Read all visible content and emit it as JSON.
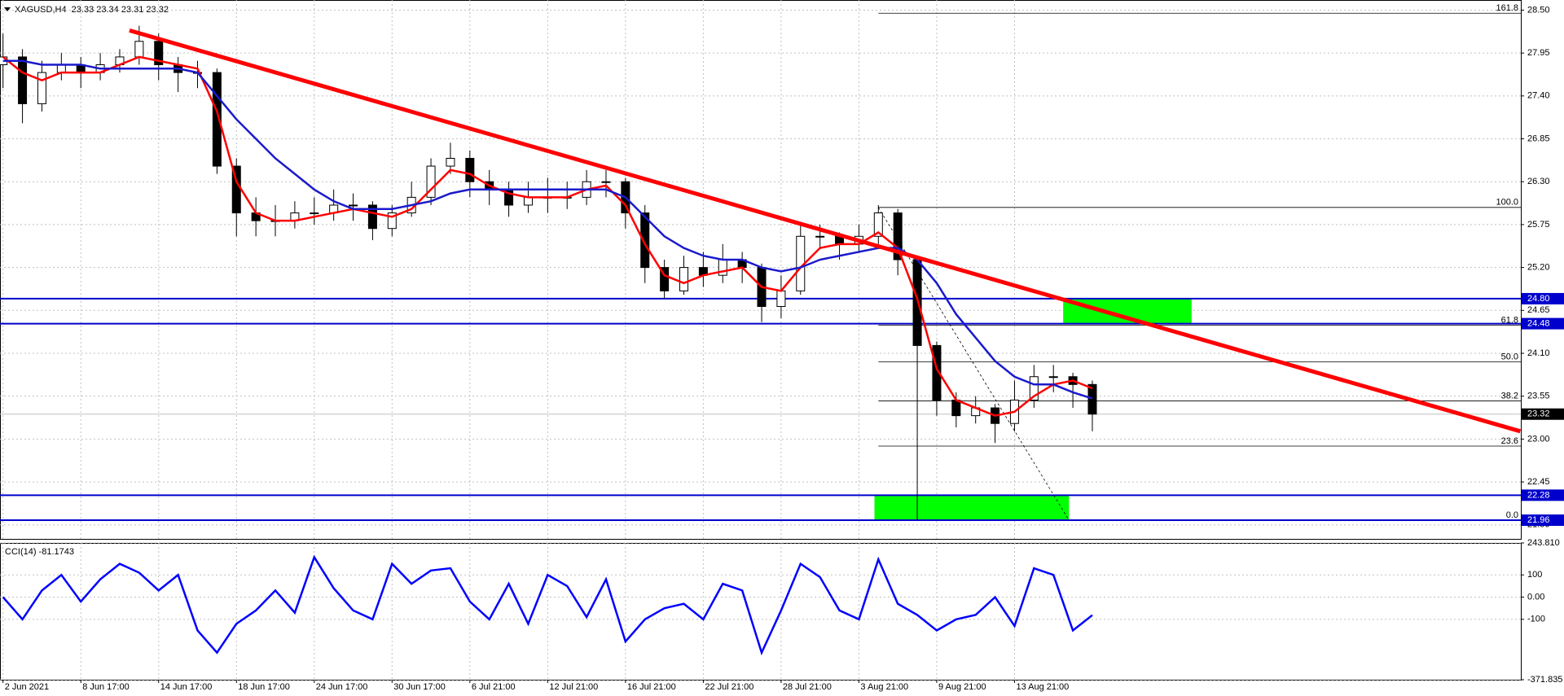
{
  "header": "XAGUSD,H4  23.33 23.34 23.31 23.32",
  "chart_data": [
    {
      "type": "candlestick",
      "categories": [
        "2 Jun 2021",
        null,
        null,
        null,
        "8 Jun 17:00",
        null,
        null,
        null,
        "14 Jun 17:00",
        null,
        null,
        null,
        "18 Jun 17:00",
        null,
        null,
        null,
        "24 Jun 17:00",
        null,
        null,
        null,
        "30 Jun 17:00",
        null,
        null,
        null,
        "6 Jul 21:00",
        null,
        null,
        null,
        "12 Jul 21:00",
        null,
        null,
        null,
        "16 Jul 21:00",
        null,
        null,
        null,
        "22 Jul 21:00",
        null,
        null,
        null,
        "28 Jul 21:00",
        null,
        null,
        null,
        "3 Aug 21:00",
        null,
        null,
        null,
        "9 Aug 21:00",
        null,
        null,
        null,
        "13 Aug 21:00",
        null,
        null,
        null,
        null
      ],
      "open": [
        27.8,
        27.9,
        27.3,
        27.7,
        27.8,
        27.7,
        27.8,
        27.9,
        28.1,
        27.8,
        27.7,
        27.7,
        26.5,
        25.9,
        25.8,
        25.8,
        25.9,
        25.9,
        26.0,
        26.0,
        25.7,
        25.9,
        26.1,
        26.5,
        26.6,
        26.3,
        26.2,
        26.0,
        26.1,
        26.1,
        26.1,
        26.3,
        26.3,
        25.9,
        25.2,
        24.9,
        25.2,
        25.1,
        25.3,
        25.2,
        24.7,
        24.9,
        25.6,
        25.6,
        25.5,
        25.6,
        25.9,
        25.3,
        24.2,
        23.5,
        23.3,
        23.4,
        23.2,
        23.5,
        23.8,
        23.8,
        23.7
      ],
      "high": [
        28.2,
        28.0,
        27.85,
        27.95,
        27.9,
        27.95,
        28.0,
        28.3,
        28.2,
        27.9,
        27.85,
        27.75,
        26.6,
        26.1,
        26.0,
        26.05,
        26.1,
        26.2,
        26.15,
        26.05,
        26.0,
        26.3,
        26.6,
        26.8,
        26.7,
        26.45,
        26.3,
        26.3,
        26.35,
        26.3,
        26.45,
        26.45,
        26.35,
        26.0,
        25.3,
        25.35,
        25.4,
        25.5,
        25.4,
        25.25,
        25.1,
        25.75,
        25.75,
        25.65,
        25.75,
        26.0,
        25.95,
        25.35,
        24.25,
        23.6,
        23.55,
        23.45,
        23.75,
        23.95,
        23.95,
        23.85,
        23.75
      ],
      "low": [
        27.5,
        27.05,
        27.2,
        27.6,
        27.5,
        27.6,
        27.7,
        27.8,
        27.6,
        27.45,
        27.5,
        26.4,
        25.6,
        25.6,
        25.6,
        25.7,
        25.75,
        25.8,
        25.8,
        25.55,
        25.6,
        25.85,
        26.0,
        26.4,
        26.1,
        26.0,
        25.85,
        25.9,
        25.9,
        25.95,
        26.0,
        26.1,
        25.7,
        25.0,
        24.8,
        24.85,
        24.95,
        25.0,
        25.0,
        24.5,
        24.55,
        24.85,
        25.45,
        25.3,
        25.4,
        25.5,
        25.1,
        21.96,
        23.3,
        23.15,
        23.2,
        22.95,
        23.1,
        23.4,
        23.6,
        23.4,
        23.1
      ],
      "close": [
        27.9,
        27.3,
        27.7,
        27.8,
        27.7,
        27.8,
        27.9,
        28.1,
        27.8,
        27.7,
        27.7,
        26.5,
        25.9,
        25.8,
        25.8,
        25.9,
        25.9,
        26.0,
        26.0,
        25.7,
        25.9,
        26.1,
        26.5,
        26.6,
        26.3,
        26.2,
        26.0,
        26.1,
        26.1,
        26.1,
        26.3,
        26.3,
        25.9,
        25.2,
        24.9,
        25.2,
        25.1,
        25.3,
        25.2,
        24.7,
        24.9,
        25.6,
        25.6,
        25.5,
        25.6,
        25.9,
        25.3,
        24.2,
        23.5,
        23.3,
        23.4,
        23.2,
        23.5,
        23.8,
        23.8,
        23.7,
        23.32
      ],
      "up_color": "#ffffff",
      "down_color": "#000000",
      "lines": [
        {
          "color": "#ff0000",
          "values": [
            27.9,
            27.7,
            27.6,
            27.7,
            27.7,
            27.7,
            27.8,
            27.9,
            27.85,
            27.8,
            27.75,
            27.2,
            26.3,
            25.9,
            25.8,
            25.8,
            25.85,
            25.9,
            25.95,
            25.9,
            25.85,
            25.95,
            26.2,
            26.45,
            26.4,
            26.25,
            26.15,
            26.1,
            26.1,
            26.1,
            26.2,
            26.25,
            26.0,
            25.5,
            25.1,
            25.0,
            25.1,
            25.15,
            25.2,
            24.95,
            24.9,
            25.2,
            25.45,
            25.5,
            25.5,
            25.65,
            25.45,
            24.8,
            23.9,
            23.5,
            23.4,
            23.3,
            23.35,
            23.55,
            23.7,
            23.75,
            23.65
          ]
        },
        {
          "color": "#1a1acc",
          "values": [
            27.85,
            27.85,
            27.8,
            27.8,
            27.8,
            27.75,
            27.75,
            27.75,
            27.75,
            27.75,
            27.7,
            27.4,
            27.1,
            26.85,
            26.6,
            26.4,
            26.2,
            26.05,
            25.95,
            25.95,
            25.95,
            26.0,
            26.05,
            26.15,
            26.2,
            26.2,
            26.2,
            26.2,
            26.2,
            26.2,
            26.2,
            26.2,
            26.1,
            25.85,
            25.6,
            25.45,
            25.35,
            25.3,
            25.3,
            25.2,
            25.15,
            25.2,
            25.3,
            25.35,
            25.4,
            25.45,
            25.45,
            25.3,
            25.0,
            24.6,
            24.3,
            24.0,
            23.8,
            23.7,
            23.7,
            23.6,
            23.52
          ]
        }
      ],
      "ylim": [
        21.72,
        28.63
      ],
      "yticks": [
        {
          "value": 28.5,
          "label": "28.50"
        },
        27.95,
        {
          "value": 27.4,
          "label": "27.40"
        },
        26.85,
        {
          "value": 26.3,
          "label": "26.30"
        },
        25.75,
        {
          "value": 25.2,
          "label": "25.20"
        },
        24.65,
        {
          "value": 24.1,
          "label": "24.10"
        },
        23.55,
        {
          "value": 23,
          "label": "23.00"
        },
        22.45,
        {
          "value": 21.9,
          "label": "21.90"
        }
      ],
      "grid": true,
      "levels": [
        {
          "value": 24.8,
          "label": "24.80"
        },
        {
          "value": 24.48,
          "label": "24.48"
        },
        {
          "value": 22.28,
          "label": "22.28"
        },
        {
          "value": 21.96,
          "label": "21.96"
        }
      ],
      "level_color": "#0000cc",
      "last_price": {
        "value": 23.32,
        "label": "23.32"
      },
      "trendline": {
        "x": [
          6.5,
          78
        ],
        "y": [
          28.24,
          23.1
        ],
        "color": "#ff0000"
      },
      "zones": [
        {
          "x": [
            54.5,
            61.1
          ],
          "y": [
            24.48,
            24.8
          ]
        },
        {
          "x": [
            44.8,
            54.8
          ],
          "y": [
            21.96,
            22.28
          ]
        }
      ],
      "zone_color": "#00ff00",
      "fibonacci": {
        "x": [
          45,
          54.8
        ],
        "levels": [
          {
            "label": "161.8",
            "price": 28.46
          },
          {
            "label": "100.0",
            "price": 25.97
          },
          {
            "label": "61.8",
            "price": 24.46
          },
          {
            "label": "50.0",
            "price": 23.99
          },
          {
            "label": "38.2",
            "price": 23.49
          },
          {
            "label": "23.6",
            "price": 22.91
          },
          {
            "label": "0.0",
            "price": 21.96
          }
        ]
      }
    },
    {
      "type": "line",
      "title": "CCI(14) -81.1743",
      "color": "#0000ff",
      "values": [
        0,
        -100,
        30,
        100,
        -20,
        80,
        150,
        110,
        30,
        100,
        -150,
        -250,
        -120,
        -60,
        30,
        -70,
        180,
        40,
        -60,
        -100,
        150,
        60,
        120,
        130,
        -20,
        -100,
        60,
        -120,
        100,
        50,
        -90,
        80,
        -200,
        -100,
        -50,
        -30,
        -100,
        60,
        30,
        -250,
        -60,
        150,
        90,
        -60,
        -100,
        170,
        -30,
        -80,
        -150,
        -100,
        -80,
        0,
        -130,
        130,
        100,
        -150,
        -81.1743
      ],
      "ylim": [
        -371.835,
        243.81
      ],
      "yticks": [
        {
          "value": 243.81,
          "label": "243.810"
        },
        100,
        {
          "value": 0,
          "label": "0.00"
        },
        -100,
        {
          "value": -371.835,
          "label": "-371.835"
        }
      ]
    }
  ]
}
